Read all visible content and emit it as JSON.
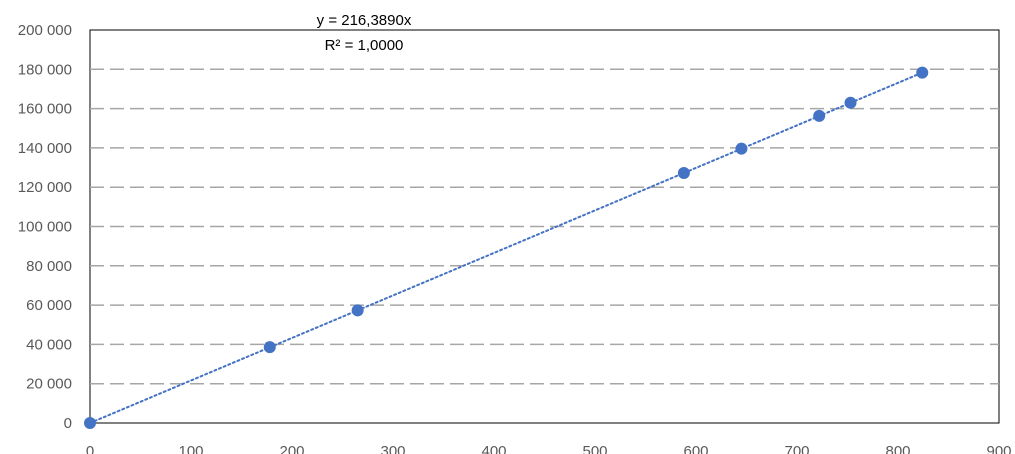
{
  "chart_data": {
    "type": "scatter",
    "title": "",
    "xlabel": "",
    "ylabel": "",
    "xlim": [
      0,
      900
    ],
    "ylim": [
      0,
      200000
    ],
    "x_ticks": [
      "0",
      "100",
      "200",
      "300",
      "400",
      "500",
      "600",
      "700",
      "800",
      "900"
    ],
    "y_ticks": [
      "0",
      "20 000",
      "40 000",
      "60 000",
      "80 000",
      "100 000",
      "120 000",
      "140 000",
      "160 000",
      "180 000",
      "200 000"
    ],
    "grid": "horizontal dashed",
    "legend": "none",
    "series": [
      {
        "points": [
          {
            "x": 0,
            "y": 0
          },
          {
            "x": 178,
            "y": 38600
          },
          {
            "x": 265,
            "y": 57300
          },
          {
            "x": 588,
            "y": 127200
          },
          {
            "x": 645,
            "y": 139600
          },
          {
            "x": 722,
            "y": 156300
          },
          {
            "x": 753,
            "y": 163000
          },
          {
            "x": 824,
            "y": 178300
          }
        ]
      }
    ],
    "trendline": {
      "type": "linear",
      "slope": 216.389,
      "equation": "y = 216,3890x",
      "r_squared": "R² = 1,0000"
    },
    "colors": {
      "marker": "#4472C4",
      "trendline": "#4472C4",
      "grid": "#A6A6A6",
      "plot_border": "#000000"
    }
  }
}
